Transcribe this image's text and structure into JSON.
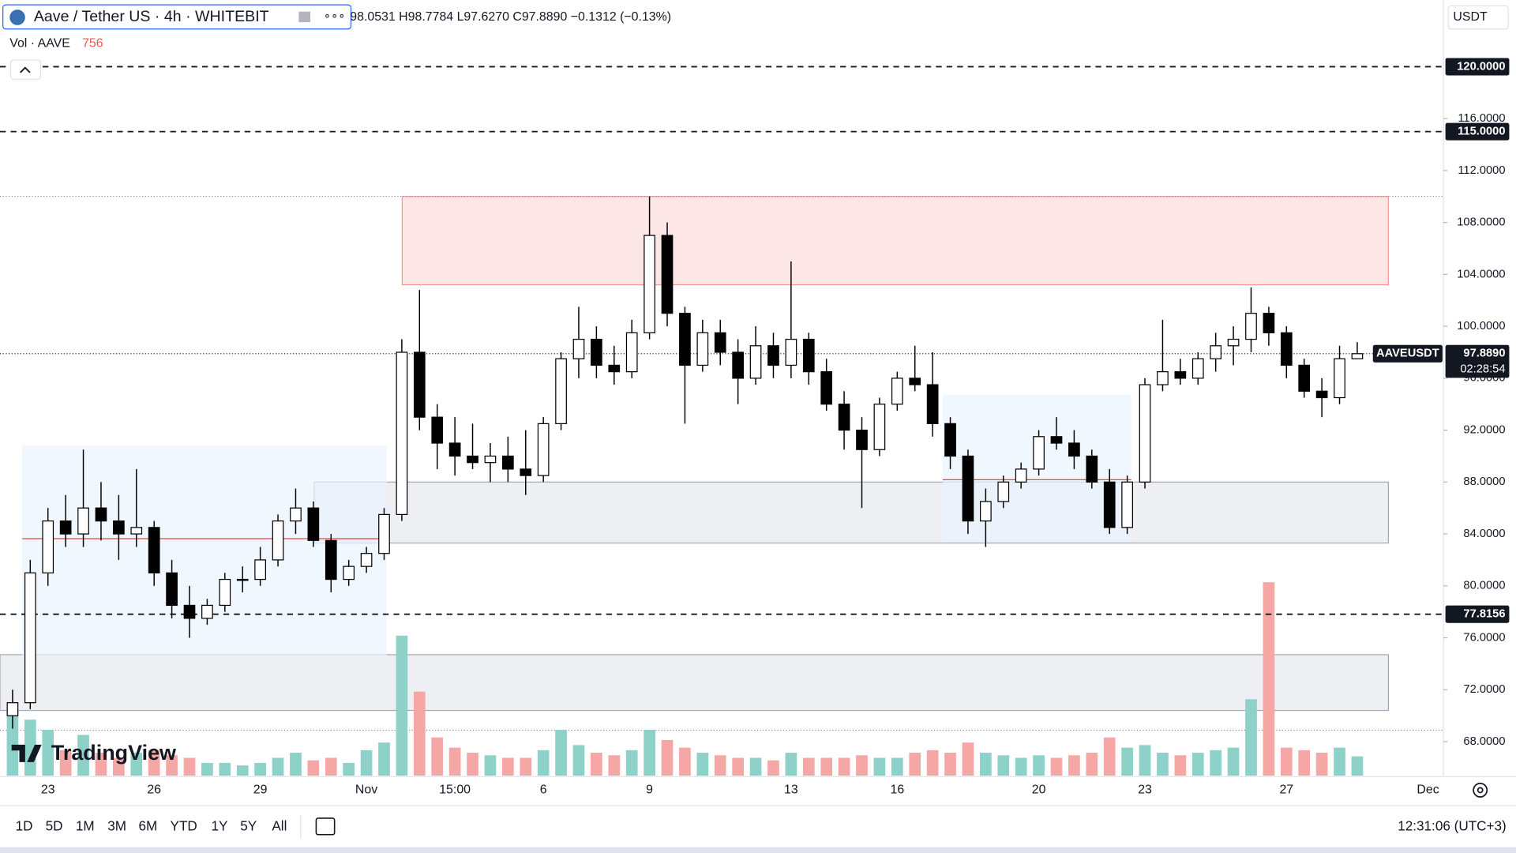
{
  "header": {
    "symbol": "Aave / Tether US · 4h · WHITEBIT",
    "ohlc": "98.0531 H98.7784 L97.6270 C97.8890 −0.1312 (−0.13%)",
    "vol_label": "Vol · AAVE",
    "vol_value": 756,
    "currency": "USDT"
  },
  "brand": "TradingView",
  "toolbar": {
    "ranges": [
      "1D",
      "5D",
      "1M",
      "3M",
      "6M",
      "YTD",
      "1Y",
      "5Y",
      "All"
    ],
    "clock": "12:31:06 (UTC+3)"
  },
  "chart_data": {
    "type": "candlestick",
    "categories": [
      null,
      null,
      "23",
      null,
      null,
      null,
      null,
      null,
      "26",
      null,
      null,
      null,
      null,
      null,
      "29",
      null,
      null,
      null,
      null,
      null,
      "Nov",
      null,
      null,
      null,
      null,
      "15:00",
      null,
      null,
      null,
      null,
      "6",
      null,
      null,
      null,
      null,
      null,
      "9",
      null,
      null,
      null,
      null,
      null,
      null,
      null,
      "13",
      null,
      null,
      null,
      null,
      null,
      "16",
      null,
      null,
      null,
      null,
      null,
      null,
      null,
      "20",
      null,
      null,
      null,
      null,
      null,
      "23",
      null,
      null,
      null,
      null,
      null,
      null,
      null,
      "27",
      null,
      null,
      null,
      null,
      null,
      null,
      null,
      "Dec"
    ],
    "open": [
      70,
      71,
      81,
      85,
      84,
      86,
      85,
      84,
      84.5,
      81,
      78.5,
      77.5,
      78.5,
      80.5,
      80.5,
      82,
      85,
      86,
      83.5,
      80.5,
      81.5,
      82.5,
      85.5,
      98,
      93,
      91,
      90,
      89.5,
      90,
      89,
      88.5,
      92.5,
      97.5,
      99,
      97,
      96.5,
      99.5,
      107,
      101,
      97,
      99.5,
      98,
      96,
      98.5,
      97,
      99,
      96.5,
      94,
      92,
      90.5,
      94,
      96,
      95.5,
      92.5,
      90,
      85,
      86.5,
      88,
      89,
      91.5,
      91,
      90,
      88,
      84.5,
      88,
      95.5,
      96.5,
      96,
      97.5,
      98.5,
      99,
      101,
      99.5,
      97,
      95,
      94.5,
      97.5,
      null,
      null,
      null,
      null
    ],
    "high": [
      72,
      82,
      86,
      87,
      90.5,
      88,
      87,
      89,
      85,
      82,
      80,
      79,
      81,
      81.5,
      83,
      85.5,
      87.5,
      86.5,
      84,
      82,
      83,
      86,
      99,
      102.8,
      94,
      93,
      92.5,
      91,
      91.5,
      92,
      93,
      98,
      101.5,
      100,
      98.5,
      100.5,
      110,
      108,
      101.5,
      100.5,
      100.5,
      99,
      100,
      99.5,
      105,
      99.5,
      97.5,
      95,
      93,
      94.5,
      96.5,
      98.5,
      98,
      93,
      90.5,
      87.5,
      88.5,
      89.5,
      92,
      93,
      92,
      90.5,
      89,
      88.5,
      96,
      100.5,
      97.5,
      98,
      99.5,
      100,
      103,
      101.5,
      100,
      97.5,
      96,
      98.5,
      98.7784,
      null,
      null,
      null,
      null
    ],
    "low": [
      69,
      70.5,
      80,
      83,
      83,
      83.5,
      82,
      83,
      80,
      77.5,
      76,
      77,
      78,
      79.5,
      80,
      81.5,
      84,
      83,
      79.5,
      80,
      81,
      82,
      85,
      92,
      89,
      88.5,
      89,
      88,
      88,
      87,
      88,
      92,
      96,
      96,
      95.5,
      96,
      99,
      100,
      92.5,
      96.5,
      97,
      94,
      95.5,
      96,
      96,
      95.5,
      93.5,
      90.5,
      86,
      90,
      93.5,
      95,
      91.5,
      89,
      84,
      83,
      86,
      87.5,
      88.5,
      90.5,
      89,
      87.5,
      84,
      84,
      87.5,
      95,
      95.5,
      95.5,
      96.5,
      97,
      98,
      98.5,
      96,
      94.5,
      93,
      94,
      97.627,
      null,
      null,
      null,
      null
    ],
    "close": [
      71,
      81,
      85,
      84,
      86,
      85,
      84,
      84.5,
      81,
      78.5,
      77.5,
      78.5,
      80.5,
      80.5,
      82,
      85,
      86,
      83.5,
      80.5,
      81.5,
      82.5,
      85.5,
      98,
      93,
      91,
      90,
      89.5,
      90,
      89,
      88.5,
      92.5,
      97.5,
      99,
      97,
      96.5,
      99.5,
      107,
      101,
      97,
      99.5,
      98,
      96,
      98.5,
      97,
      99,
      96.5,
      94,
      92,
      90.5,
      94,
      96,
      95.5,
      92.5,
      90,
      85,
      86.5,
      88,
      89,
      91.5,
      91,
      90,
      88,
      84.5,
      88,
      95.5,
      96.5,
      96,
      97.5,
      98.5,
      99,
      101,
      99.5,
      97,
      95,
      94.5,
      97.5,
      97.889,
      null,
      null,
      null,
      null
    ],
    "volume": [
      2500,
      2200,
      1800,
      1000,
      1600,
      900,
      700,
      900,
      1000,
      800,
      700,
      500,
      500,
      400,
      500,
      700,
      900,
      600,
      700,
      500,
      1000,
      1300,
      5500,
      3300,
      1500,
      1100,
      900,
      800,
      700,
      700,
      1000,
      1800,
      1200,
      900,
      800,
      1000,
      1800,
      1400,
      1100,
      900,
      800,
      700,
      700,
      600,
      900,
      700,
      700,
      700,
      800,
      700,
      700,
      900,
      1000,
      900,
      1300,
      900,
      800,
      700,
      800,
      700,
      800,
      900,
      1500,
      1100,
      1200,
      900,
      800,
      900,
      1000,
      1100,
      3000,
      7600,
      1100,
      1000,
      900,
      1100,
      756,
      null,
      null,
      null,
      null
    ],
    "up_color": "#ffffff",
    "down_color": "#000000",
    "volume_up_color": "#8dd1c8",
    "volume_down_color": "#f5a7a5",
    "ylim": [
      65.38,
      125.14
    ],
    "yticks": [
      {
        "value": 68,
        "label": "68.0000"
      },
      {
        "value": 72,
        "label": "72.0000"
      },
      {
        "value": 76,
        "label": "76.0000"
      },
      {
        "value": 80,
        "label": "80.0000"
      },
      {
        "value": 84,
        "label": "84.0000"
      },
      {
        "value": 88,
        "label": "88.0000"
      },
      {
        "value": 92,
        "label": "92.0000"
      },
      {
        "value": 96,
        "label": "96.0000"
      },
      {
        "value": 100,
        "label": "100.0000"
      },
      {
        "value": 104,
        "label": "104.0000"
      },
      {
        "value": 108,
        "label": "108.0000"
      },
      {
        "value": 112,
        "label": "112.0000"
      },
      {
        "value": 116,
        "label": "116.0000"
      }
    ],
    "levels": [
      {
        "value": 120,
        "label": "120.0000"
      },
      {
        "value": 115,
        "label": "115.0000"
      },
      {
        "value": 77.8156,
        "label": "77.8156"
      }
    ],
    "zones": [
      {
        "low": 103.2,
        "high": 110,
        "color": "#fde4e4"
      },
      {
        "low": 83.3,
        "high": 88,
        "color": "#eceef2"
      },
      {
        "low": 70.4,
        "high": 74.7,
        "color": "#eceef2"
      }
    ],
    "last": {
      "name": "AAVEUSDT",
      "value": 97.889,
      "label": "97.8890",
      "countdown": "02:28:54"
    }
  }
}
